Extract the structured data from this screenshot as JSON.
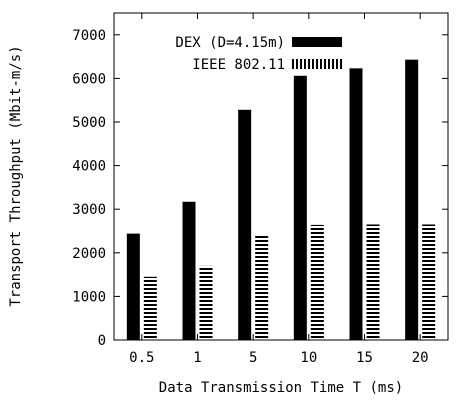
{
  "chart_data": {
    "type": "bar",
    "xlabel": "Data Transmission Time T (ms)",
    "ylabel": "Transport Throughput (Mbit-m/s)",
    "categories": [
      "0.5",
      "1",
      "5",
      "10",
      "15",
      "20"
    ],
    "ylim": [
      0,
      7500
    ],
    "yticks": [
      0,
      1000,
      2000,
      3000,
      4000,
      5000,
      6000,
      7000
    ],
    "grid": false,
    "legend_position": "top-right",
    "series": [
      {
        "name": "DEX (D=4.15m)",
        "fill": "solid",
        "values": [
          2440,
          3170,
          5280,
          6060,
          6230,
          6430
        ]
      },
      {
        "name": "IEEE 802.11",
        "fill": "hatched",
        "values": [
          1450,
          1700,
          2420,
          2640,
          2650,
          2650
        ]
      }
    ]
  }
}
